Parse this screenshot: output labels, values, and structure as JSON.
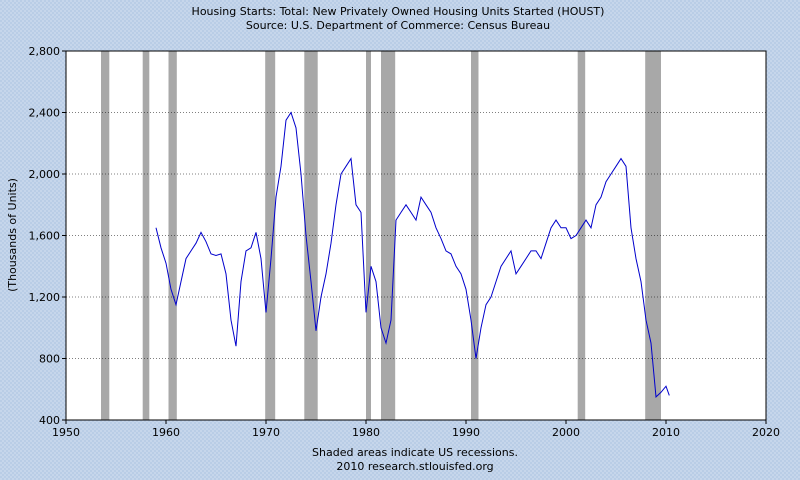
{
  "chart_data": {
    "type": "line",
    "title": "Housing Starts: Total: New Privately Owned Housing Units Started (HOUST)",
    "subtitle": "Source: U.S. Department of Commerce: Census Bureau",
    "xlabel": "",
    "ylabel": "(Thousands of Units)",
    "xlim": [
      1950,
      2020
    ],
    "ylim": [
      400,
      2800
    ],
    "x_ticks": [
      1950,
      1960,
      1970,
      1980,
      1990,
      2000,
      2010,
      2020
    ],
    "y_ticks": [
      400,
      800,
      1200,
      1600,
      2000,
      2400,
      2800
    ],
    "y_tick_labels": [
      "400",
      "800",
      "1,200",
      "1,600",
      "2,000",
      "2,400",
      "2,800"
    ],
    "grid": true,
    "line_color": "#0000cc",
    "recession_color": "#a8a8a8",
    "recessions": [
      [
        1953.5,
        1954.33
      ],
      [
        1957.67,
        1958.33
      ],
      [
        1960.25,
        1961.08
      ],
      [
        1969.92,
        1970.92
      ],
      [
        1973.83,
        1975.17
      ],
      [
        1980.0,
        1980.5
      ],
      [
        1981.5,
        1982.92
      ],
      [
        1990.5,
        1991.25
      ],
      [
        2001.17,
        2001.92
      ],
      [
        2007.92,
        2009.5
      ]
    ],
    "series": [
      {
        "x": [
          1959.0,
          1959.5,
          1960.0,
          1960.5,
          1961.0,
          1961.5,
          1962.0,
          1962.5,
          1963.0,
          1963.5,
          1964.0,
          1964.5,
          1965.0,
          1965.5,
          1966.0,
          1966.5,
          1967.0,
          1967.5,
          1968.0,
          1968.5,
          1969.0,
          1969.5,
          1970.0,
          1970.5,
          1971.0,
          1971.5,
          1972.0,
          1972.5,
          1973.0,
          1973.5,
          1974.0,
          1974.5,
          1975.0,
          1975.5,
          1976.0,
          1976.5,
          1977.0,
          1977.5,
          1978.0,
          1978.5,
          1979.0,
          1979.5,
          1980.0,
          1980.5,
          1981.0,
          1981.5,
          1982.0,
          1982.5,
          1983.0,
          1983.5,
          1984.0,
          1984.5,
          1985.0,
          1985.5,
          1986.0,
          1986.5,
          1987.0,
          1987.5,
          1988.0,
          1988.5,
          1989.0,
          1989.5,
          1990.0,
          1990.5,
          1991.0,
          1991.5,
          1992.0,
          1992.5,
          1993.0,
          1993.5,
          1994.0,
          1994.5,
          1995.0,
          1995.5,
          1996.0,
          1996.5,
          1997.0,
          1997.5,
          1998.0,
          1998.5,
          1999.0,
          1999.5,
          2000.0,
          2000.5,
          2001.0,
          2001.5,
          2002.0,
          2002.5,
          2003.0,
          2003.5,
          2004.0,
          2004.5,
          2005.0,
          2005.5,
          2006.0,
          2006.5,
          2007.0,
          2007.5,
          2008.0,
          2008.5,
          2009.0,
          2009.5,
          2010.0,
          2010.33
        ],
        "values": [
          1650,
          1520,
          1420,
          1250,
          1150,
          1300,
          1450,
          1500,
          1550,
          1620,
          1560,
          1480,
          1470,
          1480,
          1350,
          1050,
          880,
          1300,
          1500,
          1520,
          1620,
          1450,
          1100,
          1450,
          1850,
          2050,
          2350,
          2400,
          2300,
          2000,
          1600,
          1300,
          980,
          1200,
          1350,
          1550,
          1800,
          2000,
          2050,
          2100,
          1800,
          1750,
          1100,
          1400,
          1300,
          1000,
          900,
          1050,
          1700,
          1750,
          1800,
          1750,
          1700,
          1850,
          1800,
          1750,
          1650,
          1580,
          1500,
          1480,
          1400,
          1350,
          1250,
          1050,
          800,
          1000,
          1150,
          1200,
          1300,
          1400,
          1450,
          1500,
          1350,
          1400,
          1450,
          1500,
          1500,
          1450,
          1550,
          1650,
          1700,
          1650,
          1650,
          1580,
          1600,
          1650,
          1700,
          1650,
          1800,
          1850,
          1950,
          2000,
          2050,
          2100,
          2050,
          1650,
          1450,
          1300,
          1050,
          900,
          550,
          580,
          620,
          560
        ]
      }
    ],
    "notes": [
      "Shaded areas indicate US recessions.",
      "2010 research.stlouisfed.org"
    ]
  }
}
